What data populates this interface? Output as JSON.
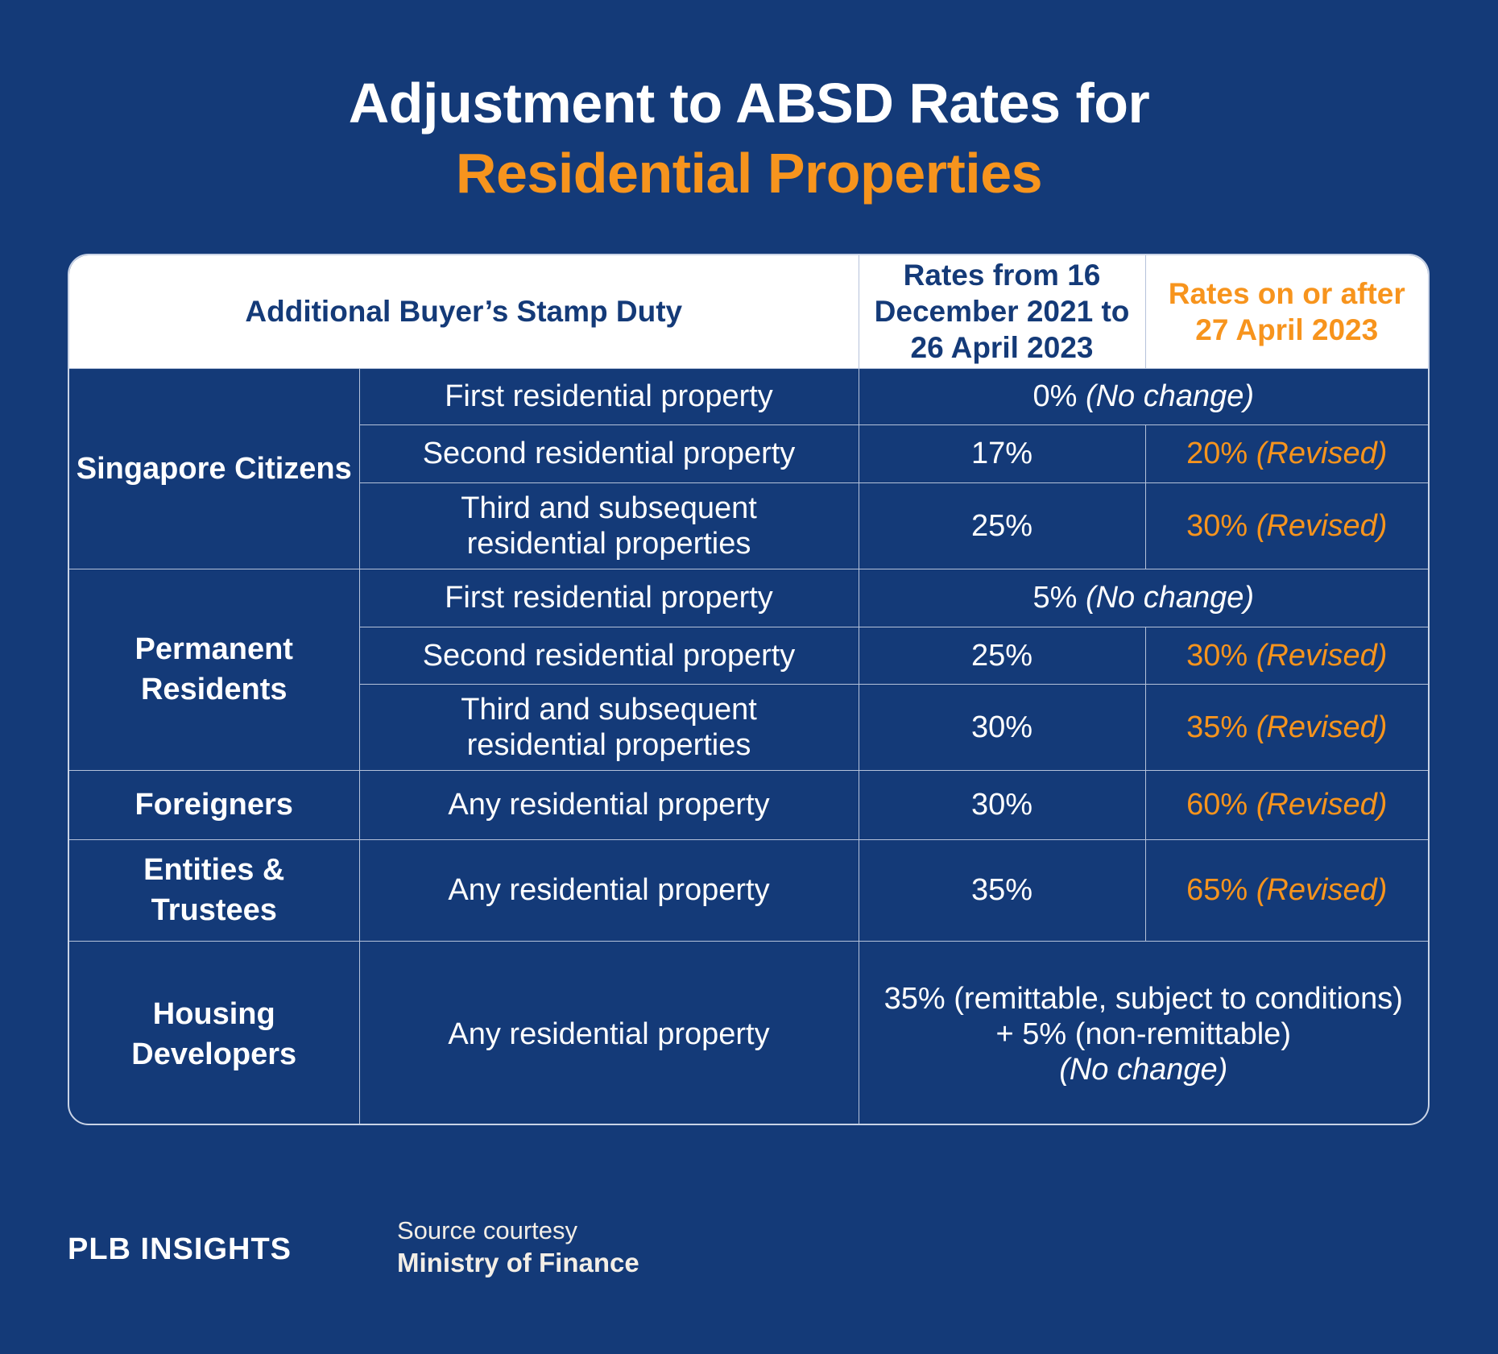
{
  "title": {
    "line1": "Adjustment to ABSD Rates for",
    "line2": "Residential Properties"
  },
  "colors": {
    "background": "#143a78",
    "accent": "#f7941d",
    "header_bg": "#ffffff"
  },
  "table": {
    "headers": [
      "Additional Buyer’s Stamp Duty",
      "Rates from 16 December 2021 to 26 April 2023",
      "Rates on or after 27 April 2023"
    ],
    "groups": [
      {
        "category": "Singapore Citizens",
        "rows": [
          {
            "property": "First residential property",
            "merged": "0%",
            "merged_note": "(No change)"
          },
          {
            "property": "Second residential property",
            "old": "17%",
            "new": "20%",
            "new_note": "(Revised)"
          },
          {
            "property": "Third and subsequent residential properties",
            "old": "25%",
            "new": "30%",
            "new_note": "(Revised)"
          }
        ]
      },
      {
        "category": "Permanent Residents",
        "rows": [
          {
            "property": "First residential property",
            "merged": "5%",
            "merged_note": "(No change)"
          },
          {
            "property": "Second residential property",
            "old": "25%",
            "new": "30%",
            "new_note": "(Revised)"
          },
          {
            "property": "Third and subsequent residential properties",
            "old": "30%",
            "new": "35%",
            "new_note": "(Revised)"
          }
        ]
      },
      {
        "category": "Foreigners",
        "rows": [
          {
            "property": "Any residential property",
            "old": "30%",
            "new": "60%",
            "new_note": "(Revised)"
          }
        ]
      },
      {
        "category": "Entities & Trustees",
        "rows": [
          {
            "property": "Any residential property",
            "old": "35%",
            "new": "65%",
            "new_note": "(Revised)"
          }
        ]
      },
      {
        "category": "Housing Developers",
        "rows": [
          {
            "property": "Any residential property",
            "merged": "35% (remittable, subject to conditions) + 5% (non-remittable)",
            "merged_note": "(No change)"
          }
        ]
      }
    ]
  },
  "footer": {
    "logo": "PLB INSIGHTS",
    "source_label": "Source courtesy",
    "source": "Ministry of Finance"
  }
}
